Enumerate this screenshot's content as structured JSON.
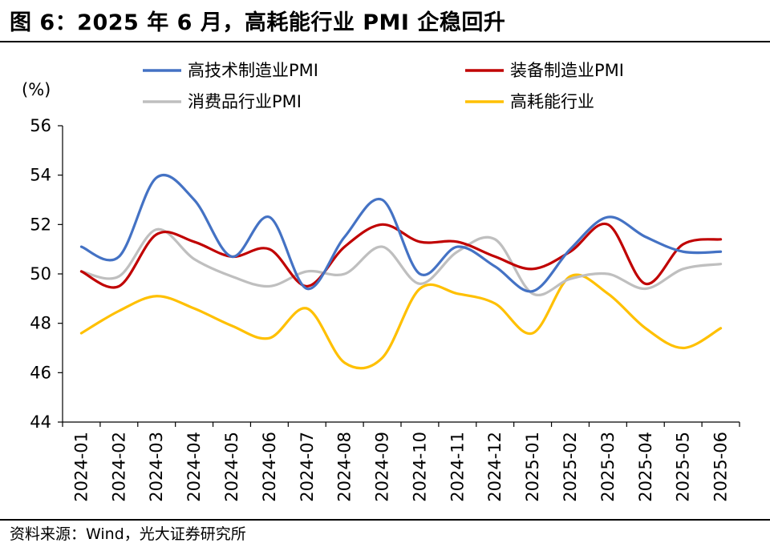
{
  "title": "图 6：2025 年 6 月，高耗能行业 PMI 企稳回升",
  "source": "资料来源：Wind，光大证券研究所",
  "chart_data": {
    "type": "line",
    "title": "",
    "ylabel": "(%)",
    "xlabel": "",
    "ylim": [
      44,
      56
    ],
    "yticks": [
      44,
      46,
      48,
      50,
      52,
      54,
      56
    ],
    "legend_position": "top",
    "categories": [
      "2024-01",
      "2024-02",
      "2024-03",
      "2024-04",
      "2024-05",
      "2024-06",
      "2024-07",
      "2024-08",
      "2024-09",
      "2024-10",
      "2024-11",
      "2024-12",
      "2025-01",
      "2025-02",
      "2025-03",
      "2025-04",
      "2025-05",
      "2025-06"
    ],
    "series": [
      {
        "name": "高技术制造业PMI",
        "color": "#4472C4",
        "values": [
          51.1,
          50.7,
          53.9,
          53.0,
          50.7,
          52.3,
          49.4,
          51.5,
          53.0,
          50.0,
          51.1,
          50.3,
          49.3,
          51.0,
          52.3,
          51.5,
          50.9,
          50.9
        ]
      },
      {
        "name": "装备制造业PMI",
        "color": "#C00000",
        "values": [
          50.1,
          49.5,
          51.6,
          51.3,
          50.7,
          51.0,
          49.5,
          51.1,
          52.0,
          51.3,
          51.3,
          50.7,
          50.2,
          50.9,
          52.0,
          49.6,
          51.2,
          51.4
        ]
      },
      {
        "name": "消费品行业PMI",
        "color": "#BFBFBF",
        "values": [
          50.1,
          49.9,
          51.8,
          50.6,
          49.9,
          49.5,
          50.1,
          50.0,
          51.1,
          49.6,
          50.9,
          51.4,
          49.2,
          49.8,
          50.0,
          49.4,
          50.2,
          50.4
        ]
      },
      {
        "name": "高耗能行业",
        "color": "#FFC000",
        "values": [
          47.6,
          48.5,
          49.1,
          48.6,
          47.9,
          47.4,
          48.6,
          46.4,
          46.6,
          49.4,
          49.2,
          48.8,
          47.6,
          49.9,
          49.2,
          47.8,
          47.0,
          47.8
        ]
      }
    ]
  }
}
